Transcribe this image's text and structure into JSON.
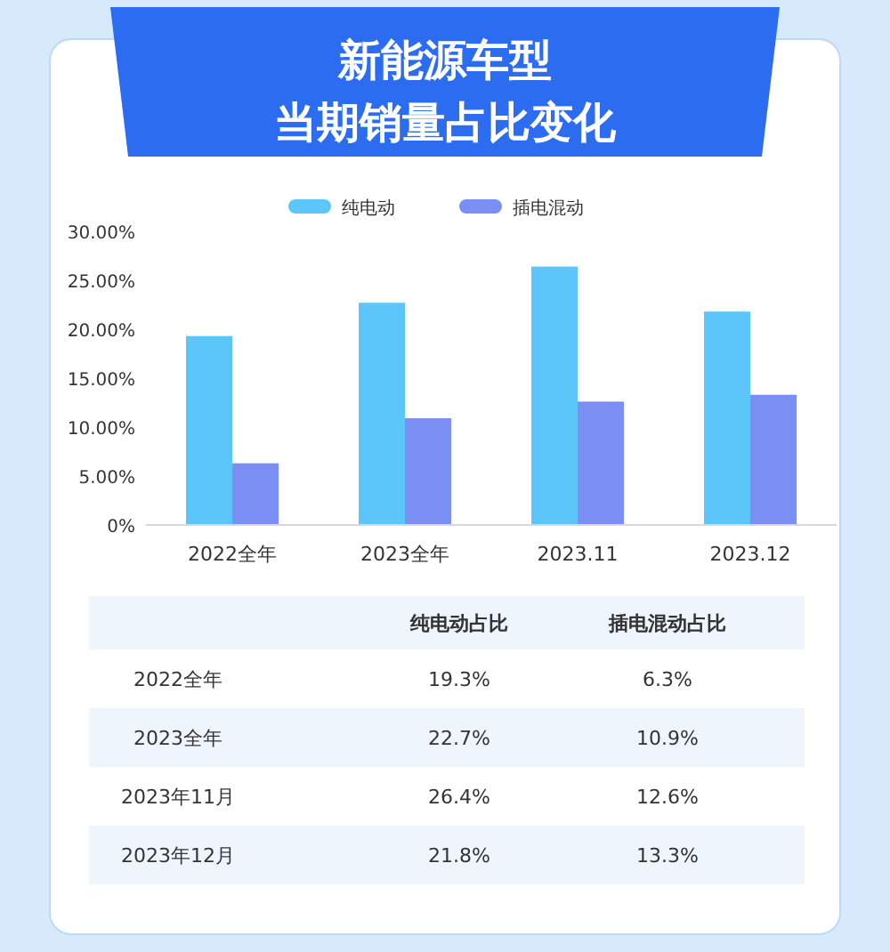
{
  "chart_data": [
    {
      "type": "bar",
      "title": "新能源车型",
      "subtitle": "当期销量占比变化",
      "categories": [
        "2022全年",
        "2023全年",
        "2023.11",
        "2023.12"
      ],
      "series": [
        {
          "name": "纯电动",
          "color": "#5cc6fb",
          "values": [
            19.3,
            22.7,
            26.4,
            21.8
          ],
          "value_labels": [
            "19.3%",
            "22.7%",
            "26.4%",
            "21.8%"
          ]
        },
        {
          "name": "插电混动",
          "color": "#7a8ef4",
          "values": [
            6.3,
            10.9,
            12.6,
            13.3
          ],
          "value_labels": [
            "6.3%",
            "10.9%",
            "12.6%",
            "13.3%"
          ]
        }
      ],
      "ylim": [
        0,
        30
      ],
      "yticks": [
        {
          "value": 0,
          "label": "0%"
        },
        {
          "value": 5,
          "label": "5.00%"
        },
        {
          "value": 10,
          "label": "10.00%"
        },
        {
          "value": 15,
          "label": "15.00%"
        },
        {
          "value": 20,
          "label": "20.00%"
        },
        {
          "value": 25,
          "label": "25.00%"
        },
        {
          "value": 30,
          "label": "30.00%"
        }
      ],
      "legend": "top"
    },
    {
      "type": "other",
      "categories": [
        "2022全年",
        "2023全年",
        "2023年11月",
        "2023年12月"
      ],
      "annotations": [
        "纯电动占比",
        "插电混动占比"
      ]
    }
  ]
}
